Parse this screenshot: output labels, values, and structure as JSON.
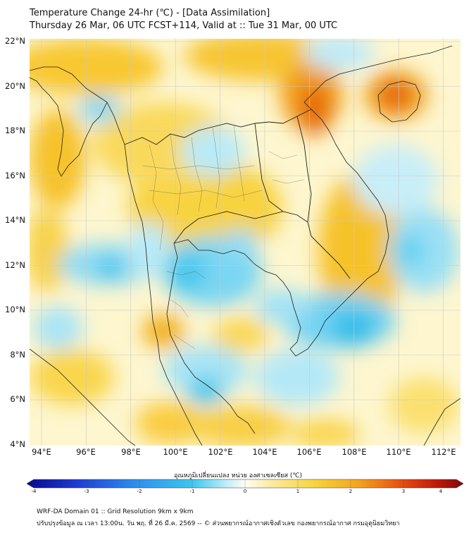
{
  "header": {
    "title_line1": "Temperature Change 24-hr (℃) - [Data Assimilation]",
    "title_line2": "Thursday 26 Mar, 06 UTC FCST+114, Valid at :: Tue 31 Mar, 00 UTC"
  },
  "map": {
    "lat_labels": [
      "22°N",
      "20°N",
      "18°N",
      "16°N",
      "14°N",
      "12°N",
      "10°N",
      "8°N",
      "6°N",
      "4°N"
    ],
    "lon_labels": [
      "94°E",
      "96°E",
      "98°E",
      "100°E",
      "102°E",
      "104°E",
      "106°E",
      "108°E",
      "110°E",
      "112°E"
    ],
    "lat_range": [
      4,
      22
    ],
    "lon_range": [
      93,
      112.3
    ],
    "colors": {
      "warm_strong": "#e05a00",
      "warm": "#f5b400",
      "warm_light": "#fbe37a",
      "cool": "#3ac4ec",
      "cool_light": "#a6e6f8",
      "coast": "#222222"
    }
  },
  "colorbar": {
    "title": "อุณหภูมิเปลี่ยนแปลง หน่วย องศาเซลเซียส (℃)",
    "tick_labels": [
      "-4",
      "-3",
      "-2",
      "-1",
      "0",
      "1",
      "2",
      "3",
      "4"
    ],
    "range": [
      -4,
      4
    ]
  },
  "footer": {
    "line1": "WRF-DA Domain 01 :: Grid Resolution 9km x 9km",
    "line2": "ปรับปรุงข้อมูล ณ เวลา 13:00น. วัน พฤ. ที่ 26 มี.ค. 2569 -- © ส่วนพยากรณ์อากาศเชิงตัวเลข กองพยากรณ์อากาศ กรมอุตุนิยมวิทยา"
  }
}
